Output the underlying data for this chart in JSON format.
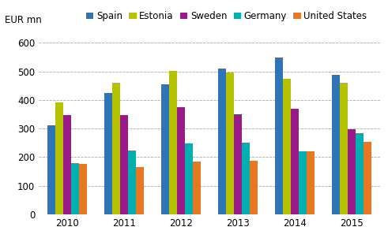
{
  "years": [
    2010,
    2011,
    2012,
    2013,
    2014,
    2015
  ],
  "series": {
    "Spain": [
      312,
      425,
      455,
      510,
      548,
      487
    ],
    "Estonia": [
      390,
      460,
      503,
      495,
      473,
      460
    ],
    "Sweden": [
      347,
      348,
      376,
      350,
      370,
      298
    ],
    "Germany": [
      178,
      222,
      247,
      250,
      220,
      285
    ],
    "United States": [
      177,
      165,
      185,
      188,
      220,
      252
    ]
  },
  "colors": {
    "Spain": "#2e75b6",
    "Estonia": "#b5c200",
    "Sweden": "#9b1a8a",
    "Germany": "#00b0b0",
    "United States": "#e87722"
  },
  "ylabel": "EUR mn",
  "ylim": [
    0,
    650
  ],
  "yticks": [
    0,
    100,
    200,
    300,
    400,
    500,
    600
  ],
  "legend_order": [
    "Spain",
    "Estonia",
    "Sweden",
    "Germany",
    "United States"
  ],
  "bar_width": 0.14,
  "background_color": "#ffffff",
  "grid_color": "#aaaaaa",
  "tick_label_fontsize": 8.5,
  "legend_fontsize": 8.5,
  "ylabel_fontsize": 8.5
}
